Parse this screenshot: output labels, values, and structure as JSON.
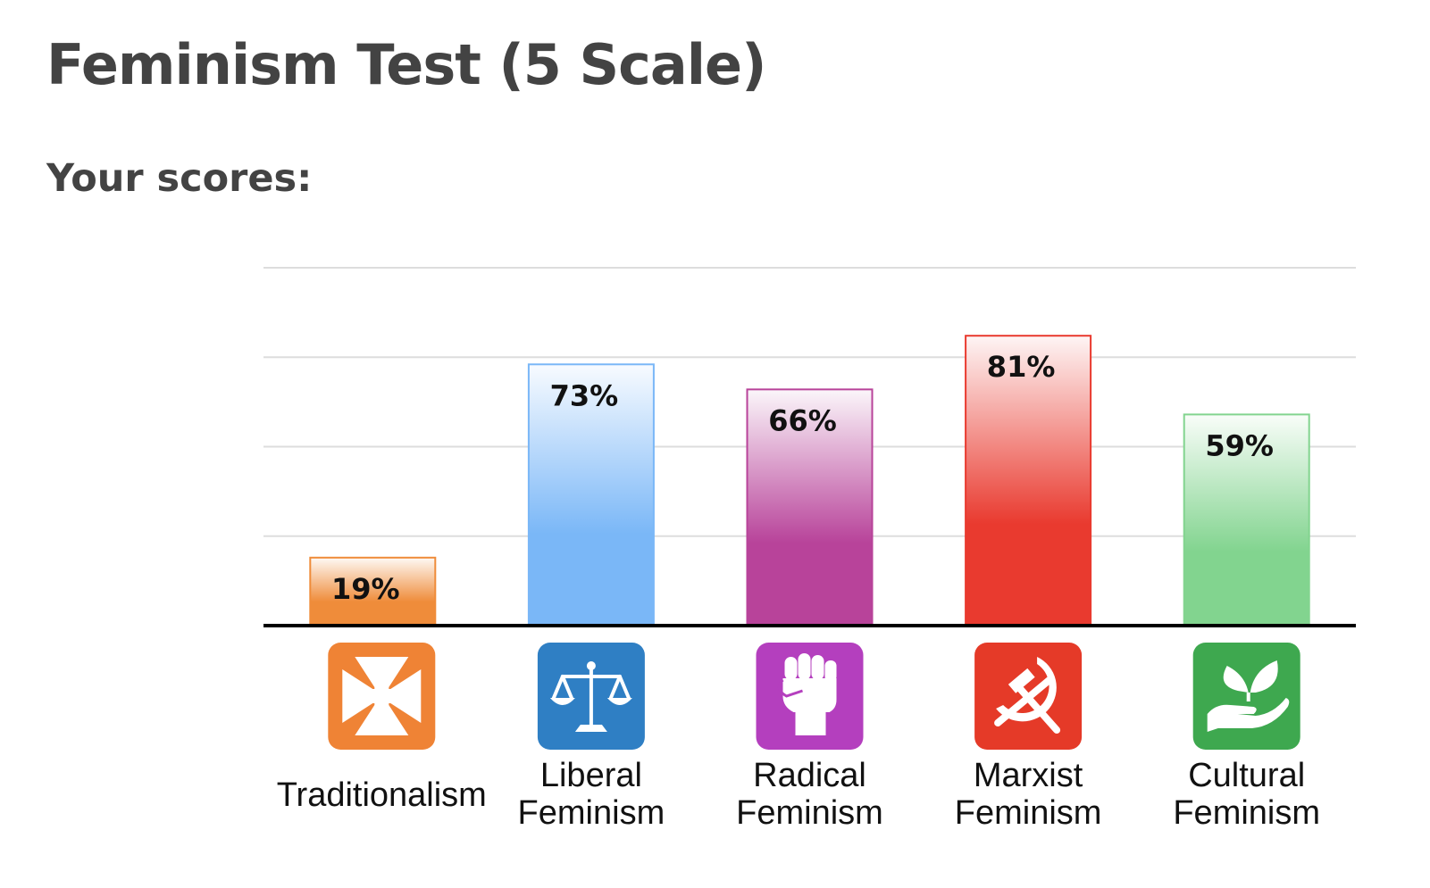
{
  "page": {
    "title": "Feminism Test (5 Scale)",
    "subtitle": "Your scores:"
  },
  "chart_data": {
    "type": "bar",
    "ylim": [
      0,
      100
    ],
    "grid": true,
    "categories": [
      [
        "Traditionalism"
      ],
      [
        "Liberal",
        "Feminism"
      ],
      [
        "Radical",
        "Feminism"
      ],
      [
        "Marxist",
        "Feminism"
      ],
      [
        "Cultural",
        "Feminism"
      ]
    ],
    "values": [
      19,
      73,
      66,
      81,
      59
    ],
    "labels": [
      "19%",
      "73%",
      "66%",
      "81%",
      "59%"
    ],
    "colors": [
      "#ef8c3a",
      "#7ab7f7",
      "#b8439a",
      "#e93a2f",
      "#82d48f"
    ],
    "icons": [
      "cross-pattee-icon",
      "scales-icon",
      "raised-fist-icon",
      "hammer-sickle-icon",
      "hand-sprout-icon"
    ],
    "icon_colors": [
      "#ef8335",
      "#2f7fc4",
      "#b43fbe",
      "#e53a28",
      "#3ea84f"
    ]
  }
}
